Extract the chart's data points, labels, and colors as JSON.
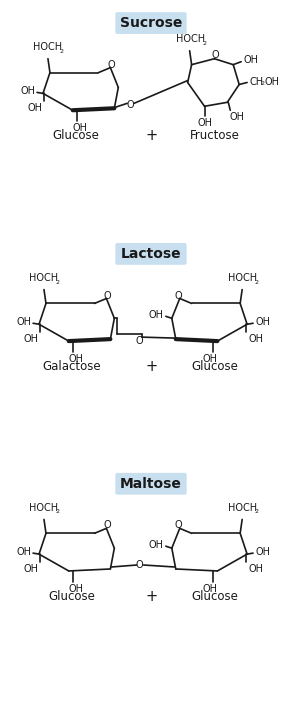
{
  "bg_color": "#ffffff",
  "highlight_color": "#c8dff0",
  "line_color": "#1a1a1a",
  "text_color": "#1a1a1a",
  "title_fontsize": 10,
  "label_fontsize": 8.5,
  "chem_fontsize": 7,
  "sub_fontsize": 5.5,
  "figsize": [
    3.02,
    7.03
  ],
  "dpi": 100,
  "section_titles": [
    "Sucrose",
    "Lactose",
    "Maltose"
  ],
  "product_labels": [
    [
      "Glucose",
      "Fructose"
    ],
    [
      "Galactose",
      "Glucose"
    ],
    [
      "Glucose",
      "Glucose"
    ]
  ]
}
